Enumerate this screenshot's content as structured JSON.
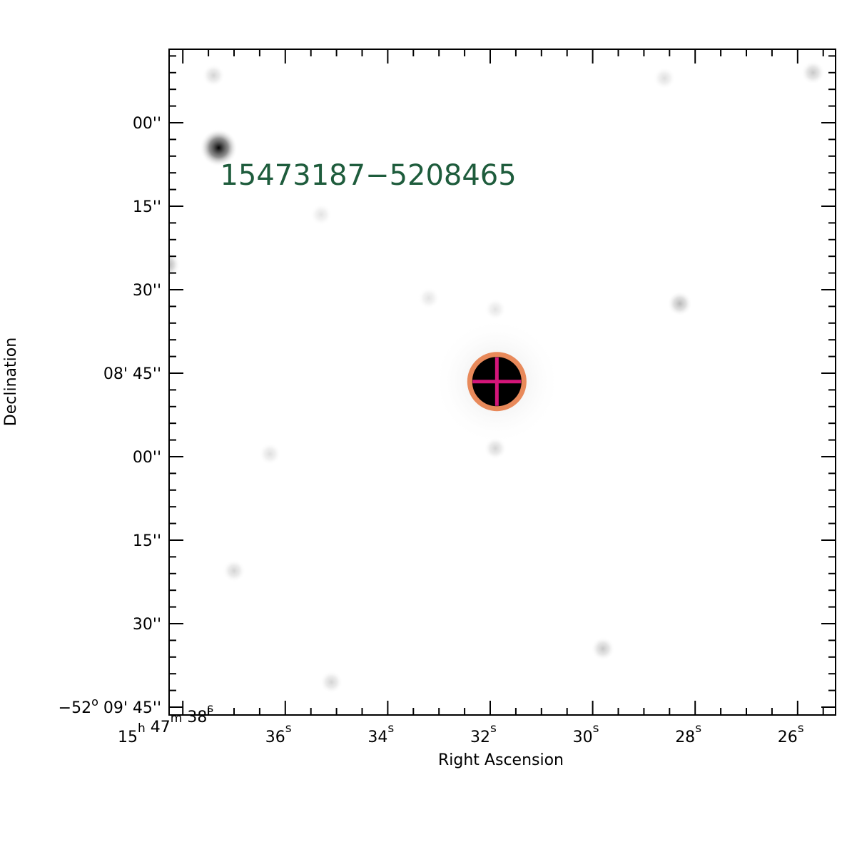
{
  "chart_data": {
    "type": "sky-image",
    "target_label": "15473187−5208465",
    "xlabel": "Right Ascension",
    "ylabel": "Declination",
    "colors": {
      "target_label": "#1e5c3c",
      "marker_circle": "#e8895a",
      "marker_cross": "#d4167a",
      "frame": "#000000"
    },
    "x_axis": {
      "first_label": {
        "h": "15",
        "m": "47",
        "s": "38"
      },
      "label_units": {
        "h": "h",
        "m": "m",
        "s": "s"
      },
      "labels": [
        {
          "s": "38",
          "text": "38",
          "unit": "s"
        },
        {
          "s": "36",
          "text": "36",
          "unit": "s"
        },
        {
          "s": "34",
          "text": "34",
          "unit": "s"
        },
        {
          "s": "32",
          "text": "32",
          "unit": "s"
        },
        {
          "s": "30",
          "text": "30",
          "unit": "s"
        },
        {
          "s": "28",
          "text": "28",
          "unit": "s"
        },
        {
          "s": "26",
          "text": "26",
          "unit": "s"
        }
      ]
    },
    "y_axis": {
      "labels": [
        {
          "arcsec": 0,
          "text": "00''"
        },
        {
          "arcsec": 15,
          "text": "15''"
        },
        {
          "arcsec": 30,
          "text": "30''"
        },
        {
          "arcsec": 45,
          "text": "08' 45''"
        },
        {
          "arcsec": 60,
          "text": "00''"
        },
        {
          "arcsec": 75,
          "text": "15''"
        },
        {
          "arcsec": 90,
          "text": "30''"
        },
        {
          "arcsec": 105,
          "text": "−52",
          "deg_unit": "o",
          "rest": " 09' 45''"
        }
      ]
    },
    "target": {
      "ra_s": 31.87,
      "dec_arcsec": 46.5
    },
    "stars": [
      {
        "ra_s": 37.3,
        "dec_arcsec": 4.5,
        "strength": 0.9
      },
      {
        "ra_s": 38.3,
        "dec_arcsec": 25.5,
        "strength": 0.3
      },
      {
        "ra_s": 28.3,
        "dec_arcsec": 32.5,
        "strength": 0.25
      },
      {
        "ra_s": 25.7,
        "dec_arcsec": -9,
        "strength": 0.2
      },
      {
        "ra_s": 37.4,
        "dec_arcsec": -8.5,
        "strength": 0.15
      },
      {
        "ra_s": 29.8,
        "dec_arcsec": 94.5,
        "strength": 0.2
      },
      {
        "ra_s": 35.1,
        "dec_arcsec": 100.5,
        "strength": 0.15
      },
      {
        "ra_s": 38.6,
        "dec_arcsec": 87.5,
        "strength": 0.2
      },
      {
        "ra_s": 37.0,
        "dec_arcsec": 80.5,
        "strength": 0.15
      },
      {
        "ra_s": 36.3,
        "dec_arcsec": 59.5,
        "strength": 0.12
      },
      {
        "ra_s": 33.2,
        "dec_arcsec": 31.5,
        "strength": 0.1
      },
      {
        "ra_s": 31.9,
        "dec_arcsec": 58.5,
        "strength": 0.15
      },
      {
        "ra_s": 31.9,
        "dec_arcsec": 33.5,
        "strength": 0.1
      },
      {
        "ra_s": 35.3,
        "dec_arcsec": 16.5,
        "strength": 0.1
      },
      {
        "ra_s": 28.6,
        "dec_arcsec": -8.0,
        "strength": 0.12
      }
    ]
  }
}
